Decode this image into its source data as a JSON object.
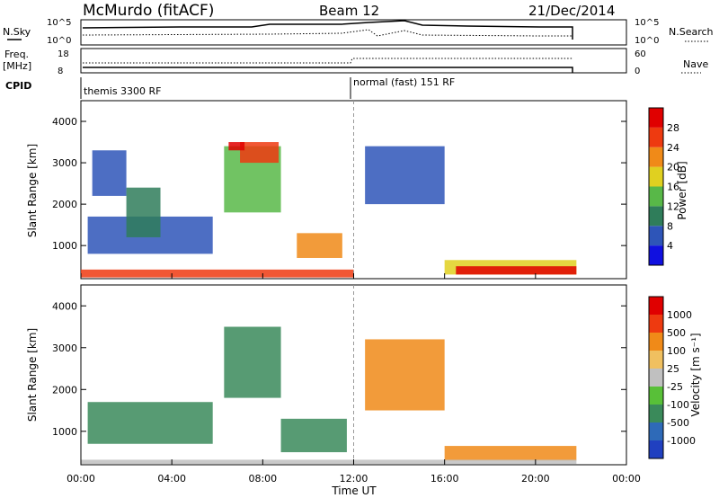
{
  "header": {
    "title": "McMurdo (fitACF)",
    "beam": "Beam 12",
    "date": "21/Dec/2014"
  },
  "top_panels": {
    "nsky_label": "N.Sky",
    "nsearch_label": "N.Search",
    "noise_ticks": [
      "10^5",
      "10^0"
    ],
    "freq_label_1": "Freq.",
    "freq_label_2": "[MHz]",
    "freq_ticks": [
      "18",
      "8"
    ],
    "nave_label": "Nave",
    "nave_ticks": [
      "60",
      "0"
    ],
    "cpid_label": "CPID",
    "cpid_1": "themis 3300 RF",
    "cpid_2": "normal (fast) 151 RF"
  },
  "chart_data": [
    {
      "type": "heatmap",
      "name": "power",
      "xlabel": "Time UT",
      "ylabel": "Slant Range [km]",
      "x_ticks": [
        "00:00",
        "04:00",
        "08:00",
        "12:00",
        "16:00",
        "20:00",
        "00:00"
      ],
      "xlim_hours": [
        0,
        24
      ],
      "ylim_km": [
        200,
        4500
      ],
      "y_ticks": [
        1000,
        2000,
        3000,
        4000
      ],
      "colorbar_label": "Power [dB]",
      "colorbar_ticks": [
        "4",
        "8",
        "12",
        "16",
        "20",
        "24",
        "28"
      ],
      "colors": [
        "#1010e0",
        "#2e55b8",
        "#2f7d5a",
        "#58b848",
        "#e0d020",
        "#f08a18",
        "#ee3a10",
        "#e00000"
      ],
      "regions": [
        {
          "t0": 0.3,
          "t1": 5.8,
          "r0": 800,
          "r1": 1700,
          "level": 1
        },
        {
          "t0": 0.5,
          "t1": 2.0,
          "r0": 2200,
          "r1": 3300,
          "level": 1
        },
        {
          "t0": 2.0,
          "t1": 3.5,
          "r0": 1200,
          "r1": 2400,
          "level": 2
        },
        {
          "t0": 6.3,
          "t1": 8.8,
          "r0": 1800,
          "r1": 3400,
          "level": 3
        },
        {
          "t0": 7.0,
          "t1": 8.7,
          "r0": 3000,
          "r1": 3500,
          "level": 6
        },
        {
          "t0": 6.5,
          "t1": 7.2,
          "r0": 3300,
          "r1": 3500,
          "level": 7
        },
        {
          "t0": 9.5,
          "t1": 11.5,
          "r0": 700,
          "r1": 1300,
          "level": 5
        },
        {
          "t0": 12.5,
          "t1": 16.0,
          "r0": 2000,
          "r1": 3400,
          "level": 1
        },
        {
          "t0": 16.0,
          "t1": 21.8,
          "r0": 300,
          "r1": 650,
          "level": 4
        },
        {
          "t0": 16.5,
          "t1": 21.8,
          "r0": 300,
          "r1": 500,
          "level": 7
        },
        {
          "t0": 0.0,
          "t1": 12.0,
          "r0": 230,
          "r1": 420,
          "level": 6
        }
      ]
    },
    {
      "type": "heatmap",
      "name": "velocity",
      "xlabel": "Time UT",
      "ylabel": "Slant Range [km]",
      "x_ticks": [
        "00:00",
        "04:00",
        "08:00",
        "12:00",
        "16:00",
        "20:00",
        "00:00"
      ],
      "xlim_hours": [
        0,
        24
      ],
      "ylim_km": [
        200,
        4500
      ],
      "y_ticks": [
        1000,
        2000,
        3000,
        4000
      ],
      "colorbar_label": "Velocity [m s⁻¹]",
      "colorbar_ticks": [
        "1000",
        "500",
        "100",
        "25",
        "-25",
        "-100",
        "-500",
        "-1000"
      ],
      "colors": [
        "#2040c0",
        "#2e6ab8",
        "#3a8a5a",
        "#58c038",
        "#c0c0c0",
        "#f0c060",
        "#f08a18",
        "#ee3a10",
        "#e00000"
      ],
      "regions": [
        {
          "t0": 0.3,
          "t1": 5.8,
          "r0": 700,
          "r1": 1700,
          "level": 2
        },
        {
          "t0": 6.3,
          "t1": 8.8,
          "r0": 1800,
          "r1": 3500,
          "level": 2
        },
        {
          "t0": 8.8,
          "t1": 11.7,
          "r0": 500,
          "r1": 1300,
          "level": 2
        },
        {
          "t0": 12.5,
          "t1": 16.0,
          "r0": 1500,
          "r1": 3200,
          "level": 6
        },
        {
          "t0": 16.0,
          "t1": 21.8,
          "r0": 300,
          "r1": 650,
          "level": 6
        },
        {
          "t0": 0.0,
          "t1": 21.8,
          "r0": 220,
          "r1": 320,
          "level": 4
        }
      ]
    }
  ]
}
